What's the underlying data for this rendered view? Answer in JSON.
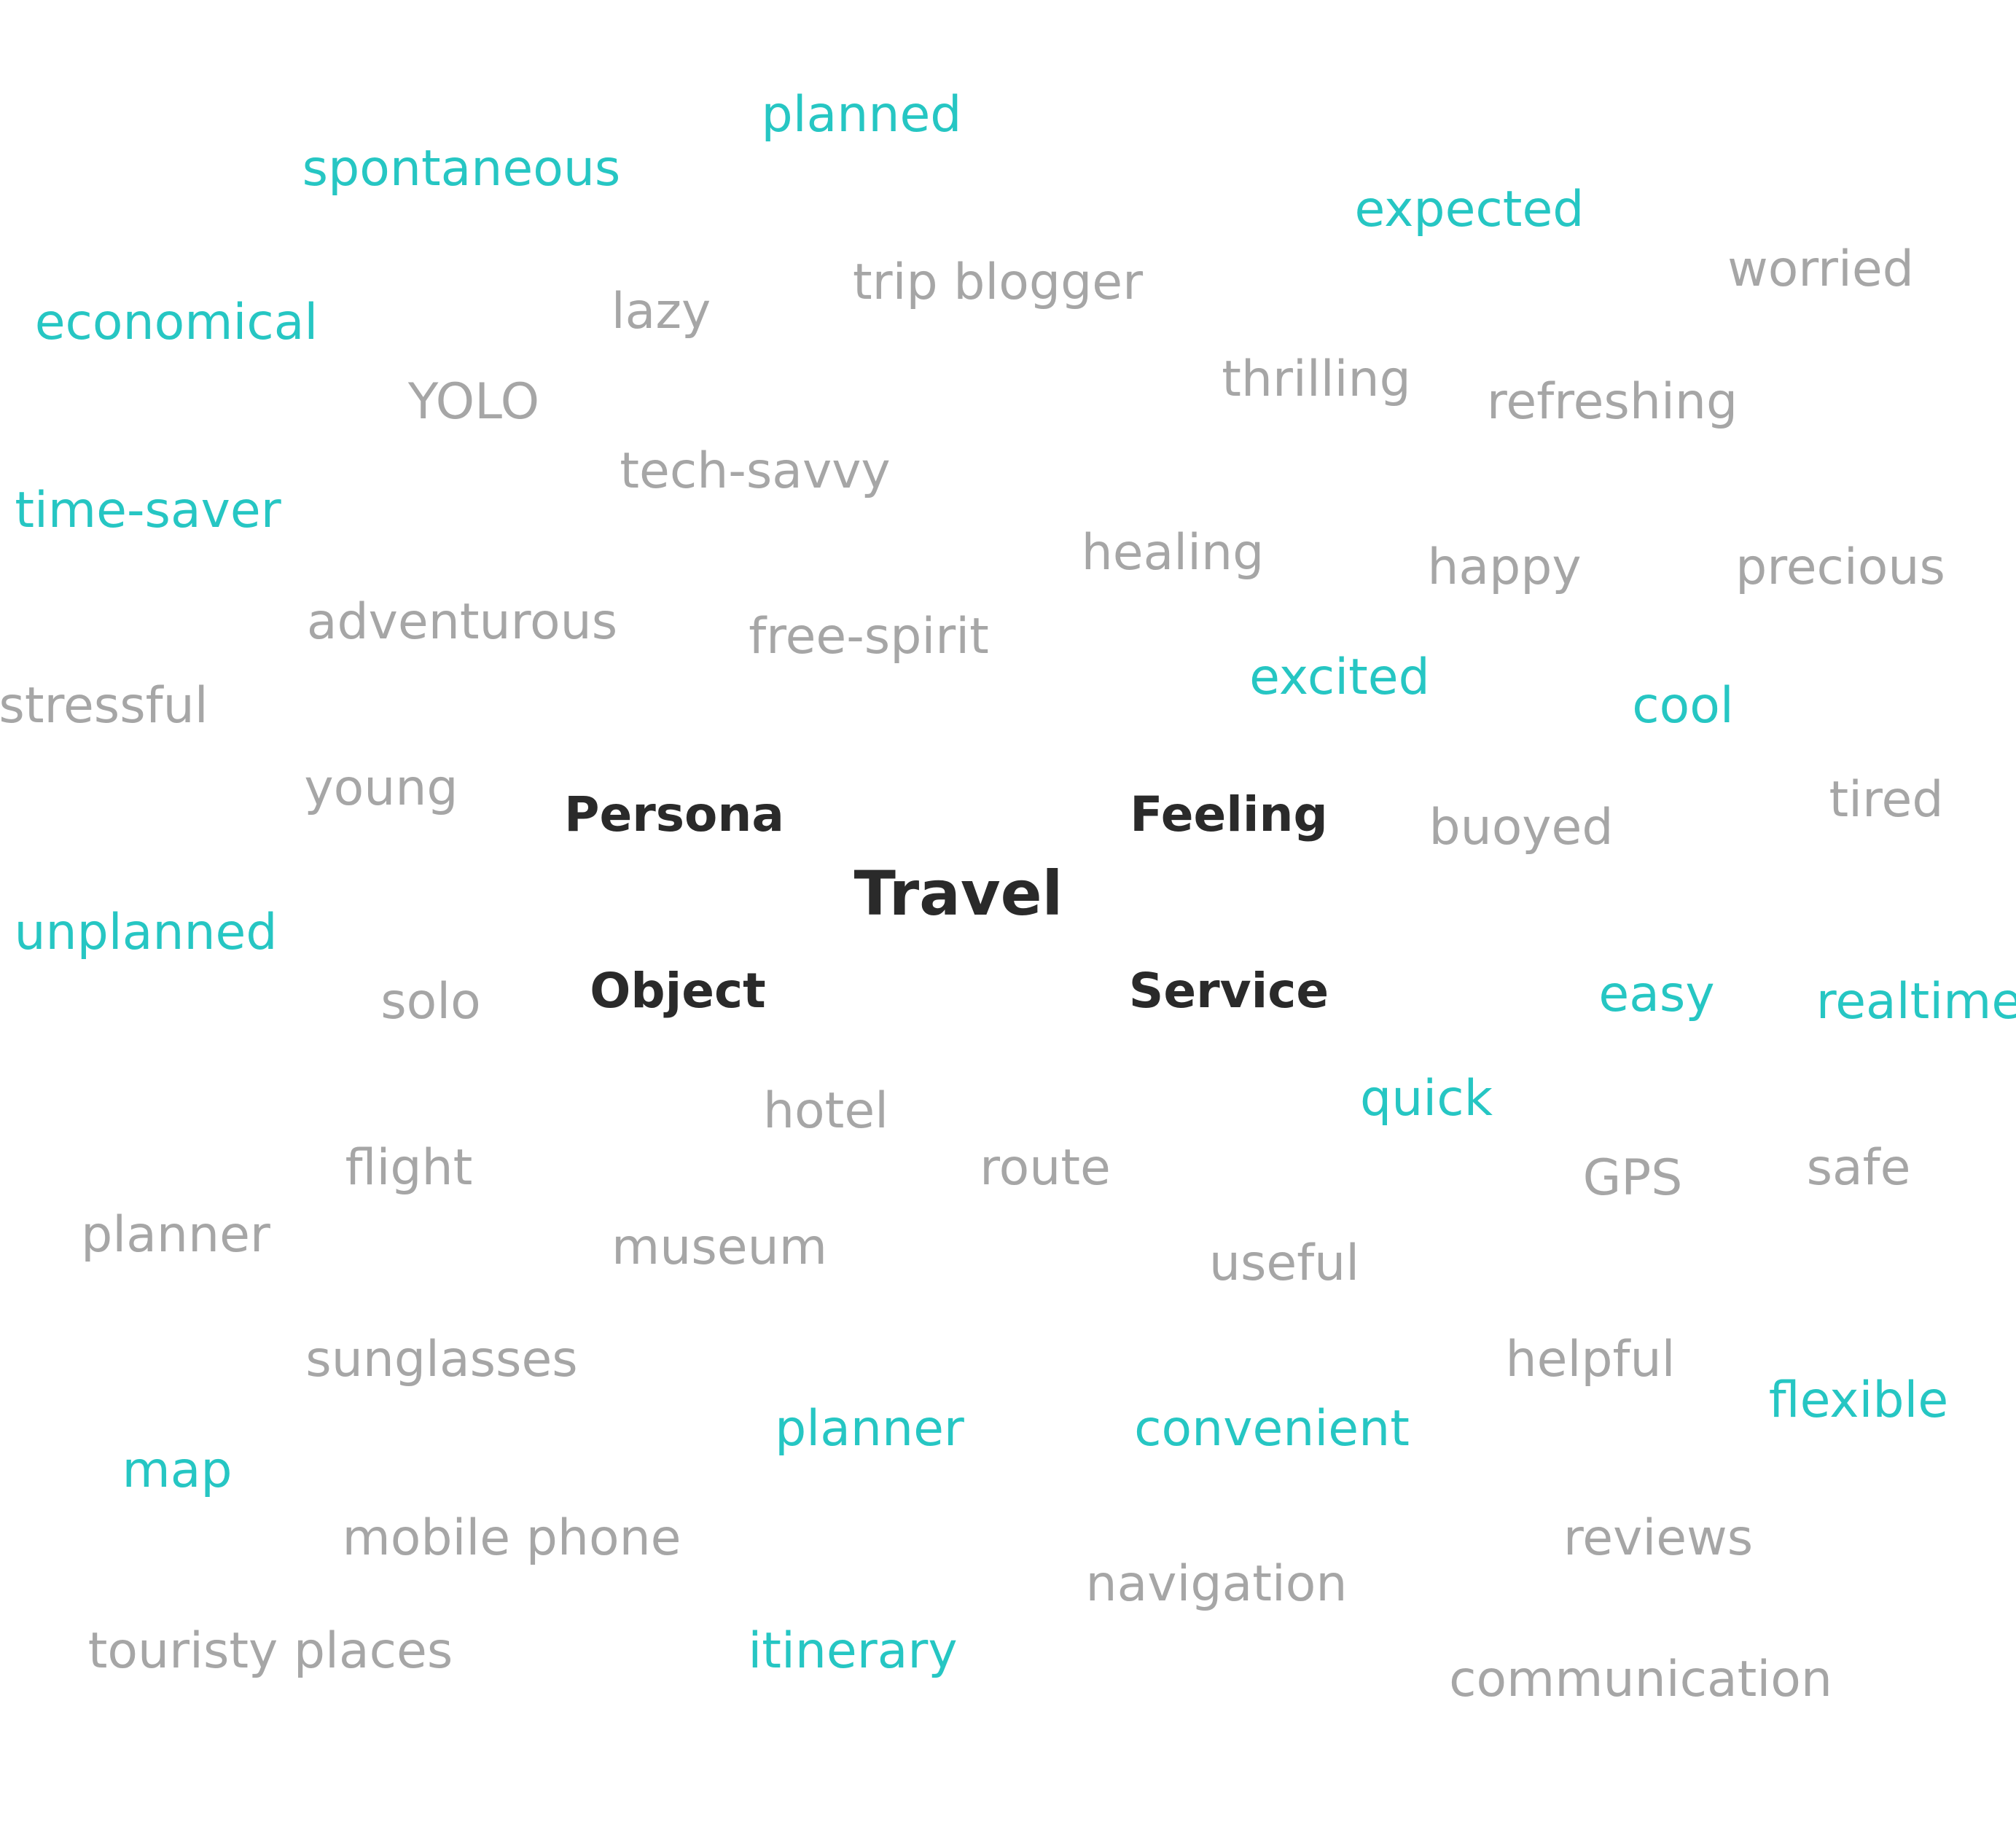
{
  "center": "Travel",
  "categories": [
    "Persona",
    "Feeling",
    "Object",
    "Service"
  ],
  "colors": {
    "gray": "#a6a6a6",
    "teal": "#26c6c3",
    "dark": "#2a2a2a",
    "background": "#ffffff"
  },
  "words": [
    {
      "text": "planned",
      "tone": "teal"
    },
    {
      "text": "spontaneous",
      "tone": "teal"
    },
    {
      "text": "expected",
      "tone": "teal"
    },
    {
      "text": "worried",
      "tone": "gray"
    },
    {
      "text": "trip blogger",
      "tone": "gray"
    },
    {
      "text": "lazy",
      "tone": "gray"
    },
    {
      "text": "economical",
      "tone": "teal"
    },
    {
      "text": "thrilling",
      "tone": "gray"
    },
    {
      "text": "refreshing",
      "tone": "gray"
    },
    {
      "text": "YOLO",
      "tone": "gray"
    },
    {
      "text": "tech-savvy",
      "tone": "gray"
    },
    {
      "text": "time-saver",
      "tone": "teal"
    },
    {
      "text": "healing",
      "tone": "gray"
    },
    {
      "text": "happy",
      "tone": "gray"
    },
    {
      "text": "precious",
      "tone": "gray"
    },
    {
      "text": "adventurous",
      "tone": "gray"
    },
    {
      "text": "free-spirit",
      "tone": "gray"
    },
    {
      "text": "excited",
      "tone": "teal"
    },
    {
      "text": "stressful",
      "tone": "gray"
    },
    {
      "text": "cool",
      "tone": "teal"
    },
    {
      "text": "young",
      "tone": "gray"
    },
    {
      "text": "tired",
      "tone": "gray"
    },
    {
      "text": "buoyed",
      "tone": "gray"
    },
    {
      "text": "unplanned",
      "tone": "teal"
    },
    {
      "text": "solo",
      "tone": "gray"
    },
    {
      "text": "easy",
      "tone": "teal"
    },
    {
      "text": "realtime",
      "tone": "teal"
    },
    {
      "text": "quick",
      "tone": "teal"
    },
    {
      "text": "hotel",
      "tone": "gray"
    },
    {
      "text": "flight",
      "tone": "gray"
    },
    {
      "text": "route",
      "tone": "gray"
    },
    {
      "text": "GPS",
      "tone": "gray"
    },
    {
      "text": "safe",
      "tone": "gray"
    },
    {
      "text": "planner",
      "tone": "gray"
    },
    {
      "text": "museum",
      "tone": "gray"
    },
    {
      "text": "useful",
      "tone": "gray"
    },
    {
      "text": "sunglasses",
      "tone": "gray"
    },
    {
      "text": "helpful",
      "tone": "gray"
    },
    {
      "text": "flexible",
      "tone": "teal"
    },
    {
      "text": "planner",
      "tone": "teal"
    },
    {
      "text": "convenient",
      "tone": "teal"
    },
    {
      "text": "map",
      "tone": "teal"
    },
    {
      "text": "mobile phone",
      "tone": "gray"
    },
    {
      "text": "reviews",
      "tone": "gray"
    },
    {
      "text": "navigation",
      "tone": "gray"
    },
    {
      "text": "touristy places",
      "tone": "gray"
    },
    {
      "text": "itinerary",
      "tone": "teal"
    },
    {
      "text": "communication",
      "tone": "gray"
    }
  ]
}
